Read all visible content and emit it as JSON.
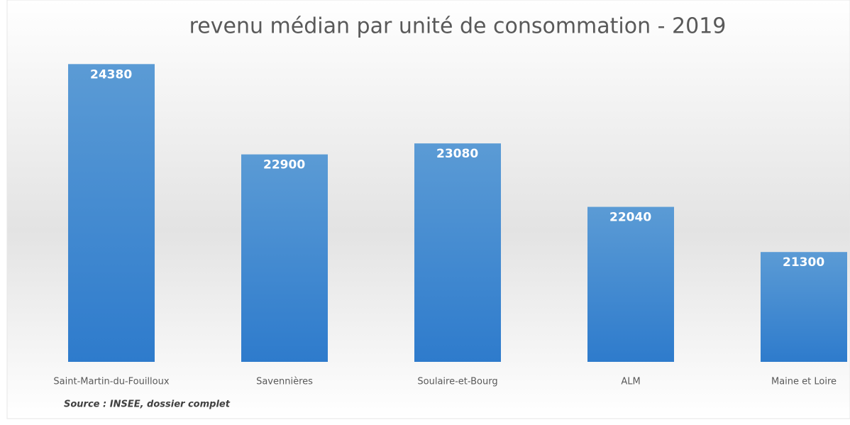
{
  "chart_data": {
    "type": "bar",
    "title": "revenu médian par unité de consommation - 2019",
    "annotation": "Source : INSEE, dossier complet",
    "categories": [
      "Saint-Martin-du-Fouilloux",
      "Savennières",
      "Soulaire-et-Bourg",
      "ALM",
      "Maine et Loire"
    ],
    "values": [
      24380,
      22900,
      23080,
      22040,
      21300
    ],
    "color": "#5b9bd5",
    "ylim": [
      19500,
      25000
    ]
  }
}
